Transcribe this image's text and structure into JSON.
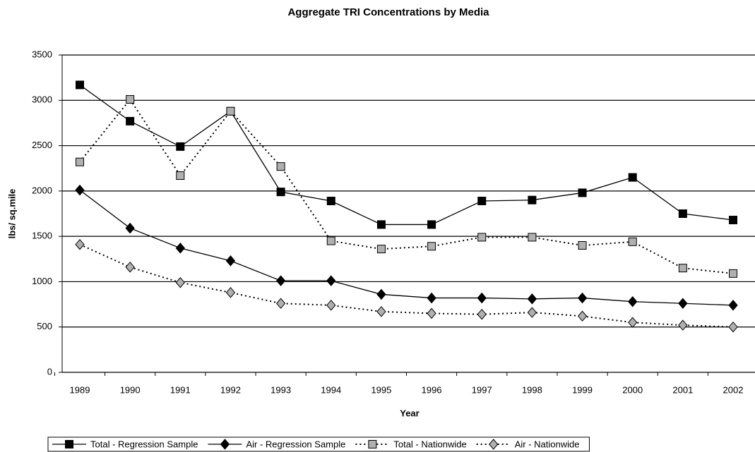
{
  "chart_data": {
    "type": "line",
    "title": "Aggregate TRI Concentrations by Media",
    "x_label": "Year",
    "y_label": "lbs/ sq.mile",
    "categories": [
      "1989",
      "1990",
      "1991",
      "1992",
      "1993",
      "1994",
      "1995",
      "1996",
      "1997",
      "1998",
      "1999",
      "2000",
      "2001",
      "2002"
    ],
    "series": [
      {
        "name": "Total - Regression Sample",
        "color": "#000000",
        "line_style": "solid",
        "marker": "square",
        "values": [
          3170,
          2770,
          2490,
          2880,
          1990,
          1890,
          1630,
          1630,
          1890,
          1900,
          1980,
          2150,
          1750,
          1680
        ]
      },
      {
        "name": "Air - Regression Sample",
        "color": "#000000",
        "line_style": "solid",
        "marker": "diamond",
        "values": [
          2010,
          1590,
          1370,
          1230,
          1010,
          1010,
          860,
          820,
          820,
          810,
          820,
          780,
          760,
          740
        ]
      },
      {
        "name": "Total - Nationwide",
        "color": "#b0b0b0",
        "line_style": "dotted",
        "marker": "square",
        "values": [
          2320,
          3010,
          2170,
          2880,
          2270,
          1450,
          1360,
          1390,
          1490,
          1490,
          1400,
          1440,
          1150,
          1090
        ]
      },
      {
        "name": "Air - Nationwide",
        "color": "#b0b0b0",
        "line_style": "dotted",
        "marker": "diamond",
        "values": [
          1410,
          1160,
          990,
          880,
          760,
          740,
          670,
          650,
          640,
          660,
          620,
          550,
          520,
          500
        ]
      }
    ],
    "ylim": [
      0,
      3500
    ],
    "yticks": [
      0,
      500,
      1000,
      1500,
      2000,
      2500,
      3000,
      3500
    ],
    "grid": true,
    "legend": "bottom"
  }
}
